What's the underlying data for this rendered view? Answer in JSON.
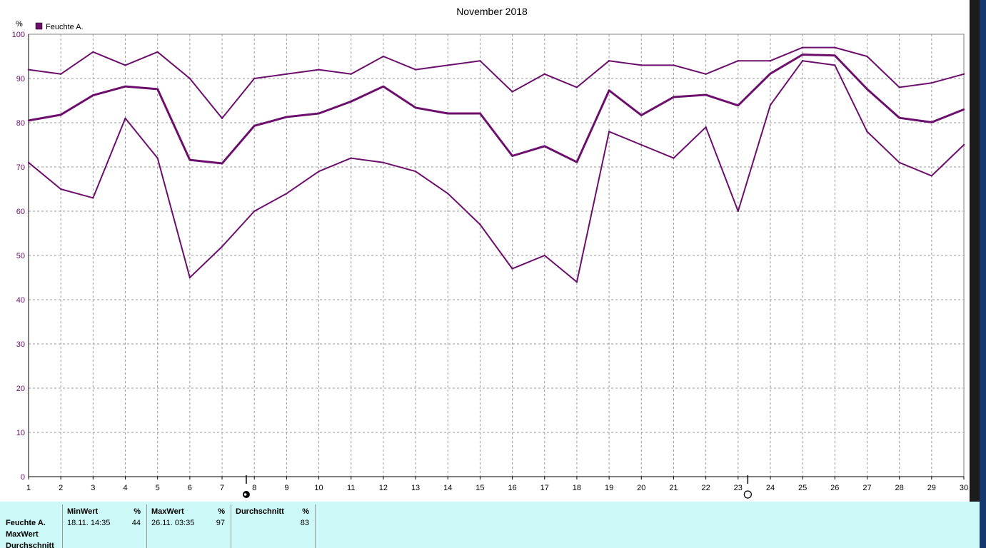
{
  "colors": {
    "series": "#6c0f6c",
    "grid": "#9a9a9a",
    "panel": "#ccf8f8"
  },
  "legend": {
    "label": "Feuchte A."
  },
  "chart_data": {
    "type": "line",
    "title": "November 2018",
    "ylabel": "%",
    "xlabel": "",
    "ylim": [
      0,
      100
    ],
    "yticks": [
      0,
      10,
      20,
      30,
      40,
      50,
      60,
      70,
      80,
      90,
      100
    ],
    "x": [
      1,
      2,
      3,
      4,
      5,
      6,
      7,
      8,
      9,
      10,
      11,
      12,
      13,
      14,
      15,
      16,
      17,
      18,
      19,
      20,
      21,
      22,
      23,
      24,
      25,
      26,
      27,
      28,
      29,
      30
    ],
    "grid": true,
    "legend_position": "top-left",
    "series": [
      {
        "name": "MaxWert",
        "values": [
          92,
          91,
          96,
          93,
          96,
          90,
          81,
          90,
          91,
          92,
          91,
          95,
          92,
          93,
          94,
          87,
          91,
          88,
          94,
          93,
          93,
          91,
          94,
          94,
          97,
          97,
          95,
          88,
          89,
          91
        ]
      },
      {
        "name": "Durchschnitt",
        "values": [
          80.5,
          81.8,
          86.2,
          88.2,
          87.6,
          71.6,
          70.8,
          79.3,
          81.3,
          82.1,
          84.8,
          88.2,
          83.4,
          82.1,
          82.1,
          72.5,
          74.7,
          71.1,
          87.3,
          81.7,
          85.8,
          86.3,
          83.9,
          91.1,
          95.4,
          95.2,
          87.6,
          81.1,
          80.1,
          83
        ]
      },
      {
        "name": "MinWert",
        "values": [
          71,
          65,
          63,
          81,
          72,
          45,
          52,
          60,
          64,
          69,
          72,
          71,
          69,
          64,
          57,
          47,
          50,
          44,
          78,
          75,
          72,
          79,
          60,
          84,
          94,
          93,
          78,
          71,
          68,
          75
        ]
      }
    ],
    "markers": [
      {
        "label": "moon-full-icon",
        "day": 7.75
      },
      {
        "label": "moon-new-icon",
        "day": 23.3
      }
    ]
  },
  "stats": {
    "row_labels": [
      "Feuchte A.",
      "MaxWert",
      "Durchschnitt"
    ],
    "min": {
      "header": "MinWert",
      "unit": "%",
      "time": "18.11. 14:35",
      "value": "44"
    },
    "max": {
      "header": "MaxWert",
      "unit": "%",
      "time": "26.11. 03:35",
      "value": "97"
    },
    "avg": {
      "header": "Durchschnitt",
      "unit": "%",
      "value": "83"
    }
  }
}
